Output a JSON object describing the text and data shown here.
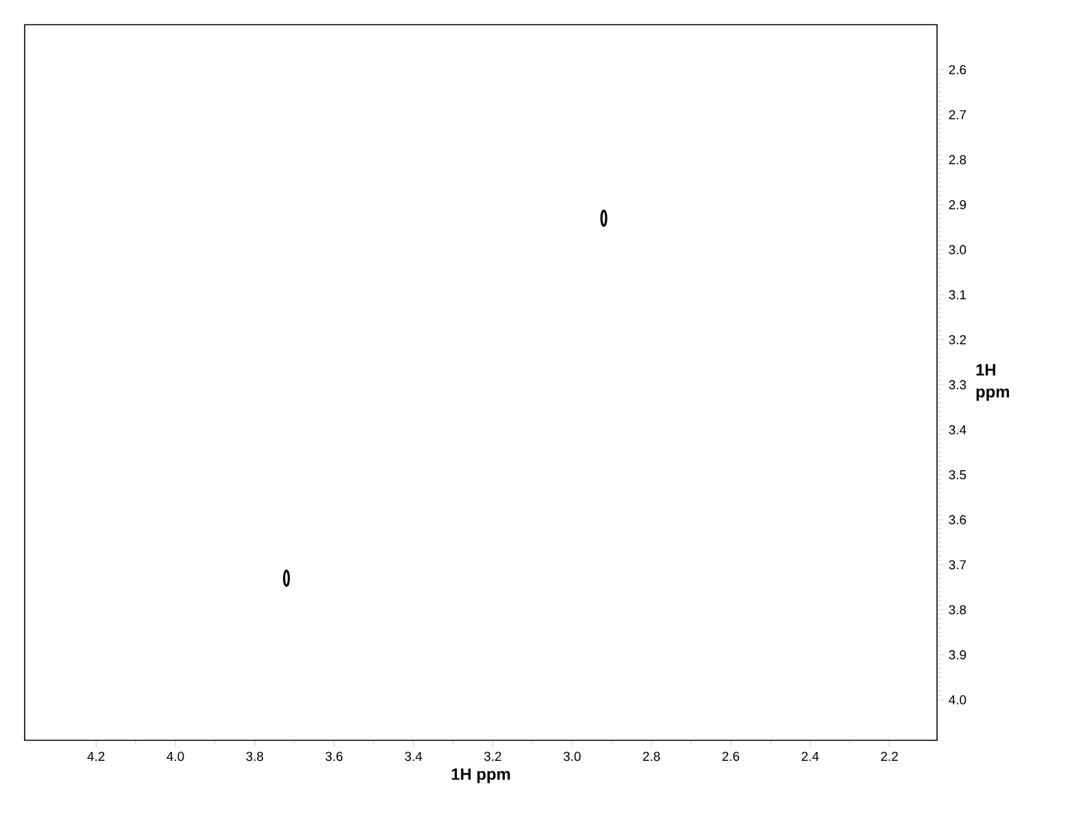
{
  "chart_data": {
    "type": "scatter",
    "xlabel": "1H ppm",
    "ylabel": "1H ppm",
    "marker": "circle",
    "series": [
      {
        "color": "#000000",
        "x": [
          2.92,
          3.72
        ],
        "values": [
          2.93,
          3.73
        ]
      }
    ],
    "xlim": [
      4.38,
      2.08
    ],
    "ylim": [
      4.09,
      2.5
    ],
    "xticks": [
      {
        "value": 4.2,
        "label": "4.2"
      },
      {
        "value": 4.0,
        "label": "4.0"
      },
      {
        "value": 3.8,
        "label": "3.8"
      },
      {
        "value": 3.6,
        "label": "3.6"
      },
      {
        "value": 3.4,
        "label": "3.4"
      },
      {
        "value": 3.2,
        "label": "3.2"
      },
      {
        "value": 3.0,
        "label": "3.0"
      },
      {
        "value": 2.8,
        "label": "2.8"
      },
      {
        "value": 2.6,
        "label": "2.6"
      },
      {
        "value": 2.4,
        "label": "2.4"
      },
      {
        "value": 2.2,
        "label": "2.2"
      }
    ],
    "yticks": [
      {
        "value": 2.6,
        "label": "2.6"
      },
      {
        "value": 2.7,
        "label": "2.7"
      },
      {
        "value": 2.8,
        "label": "2.8"
      },
      {
        "value": 2.9,
        "label": "2.9"
      },
      {
        "value": 3.0,
        "label": "3.0"
      },
      {
        "value": 3.1,
        "label": "3.1"
      },
      {
        "value": 3.2,
        "label": "3.2"
      },
      {
        "value": 3.3,
        "label": "3.3"
      },
      {
        "value": 3.4,
        "label": "3.4"
      },
      {
        "value": 3.5,
        "label": "3.5"
      },
      {
        "value": 3.6,
        "label": "3.6"
      },
      {
        "value": 3.7,
        "label": "3.7"
      },
      {
        "value": 3.8,
        "label": "3.8"
      },
      {
        "value": 3.9,
        "label": "3.9"
      },
      {
        "value": 4.0,
        "label": "4.0"
      }
    ],
    "grid": false
  }
}
